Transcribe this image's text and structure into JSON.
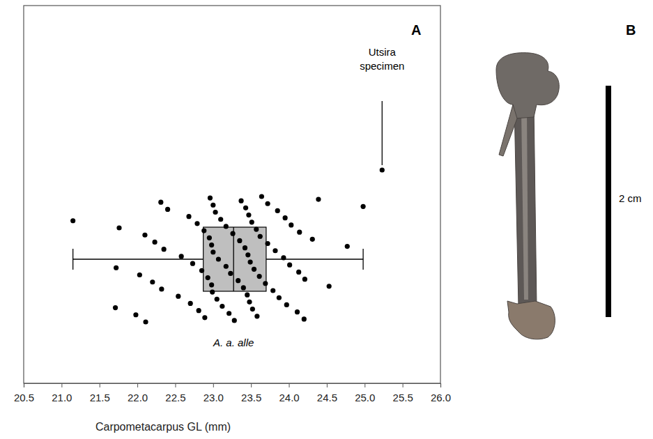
{
  "chart_data": {
    "type": "box",
    "panel": "A",
    "xlabel": "Carpometacarpus GL (mm)",
    "group": "A. a. alle",
    "xlim": [
      20.5,
      26.0
    ],
    "xticks": [
      20.5,
      {
        "value": 21.0,
        "label": "21.0"
      },
      21.5,
      {
        "value": 22.0,
        "label": "22.0"
      },
      22.5,
      {
        "value": 23.0,
        "label": "23.0"
      },
      23.5,
      {
        "value": 24.0,
        "label": "24.0"
      },
      24.5,
      {
        "value": 25.0,
        "label": "25.0"
      },
      25.5,
      {
        "value": 26.0,
        "label": "26.0"
      }
    ],
    "tick_labels": "x",
    "box": {
      "whisker_low": 21.15,
      "q1": 22.87,
      "median": 23.27,
      "q3": 23.7,
      "whisker_high": 24.98
    },
    "color": "#bfbfbf",
    "marker": "circle",
    "points": [
      21.15,
      21.71,
      21.72,
      21.76,
      21.98,
      22.03,
      22.1,
      22.11,
      22.2,
      22.23,
      22.31,
      22.32,
      22.35,
      22.4,
      22.54,
      22.58,
      22.68,
      22.7,
      22.73,
      22.79,
      22.81,
      22.85,
      22.88,
      22.89,
      22.93,
      22.95,
      22.96,
      22.98,
      22.98,
      23.0,
      22.99,
      23.0,
      23.03,
      23.05,
      23.07,
      23.1,
      23.12,
      23.17,
      23.17,
      23.21,
      23.23,
      23.26,
      23.28,
      23.33,
      23.35,
      23.37,
      23.4,
      23.42,
      23.43,
      23.45,
      23.46,
      23.47,
      23.48,
      23.49,
      23.51,
      23.52,
      23.54,
      23.57,
      23.58,
      23.61,
      23.62,
      23.64,
      23.69,
      23.72,
      23.72,
      23.79,
      23.82,
      23.85,
      23.87,
      23.93,
      23.95,
      23.97,
      24.01,
      24.03,
      24.11,
      24.13,
      24.14,
      24.2,
      24.21,
      24.31,
      24.39,
      24.53,
      24.77,
      24.98
    ],
    "specimen": {
      "label": "Utsira specimen",
      "value": 25.23
    }
  },
  "image_panel": {
    "panel": "B",
    "scale_bar_label": "2 cm"
  }
}
